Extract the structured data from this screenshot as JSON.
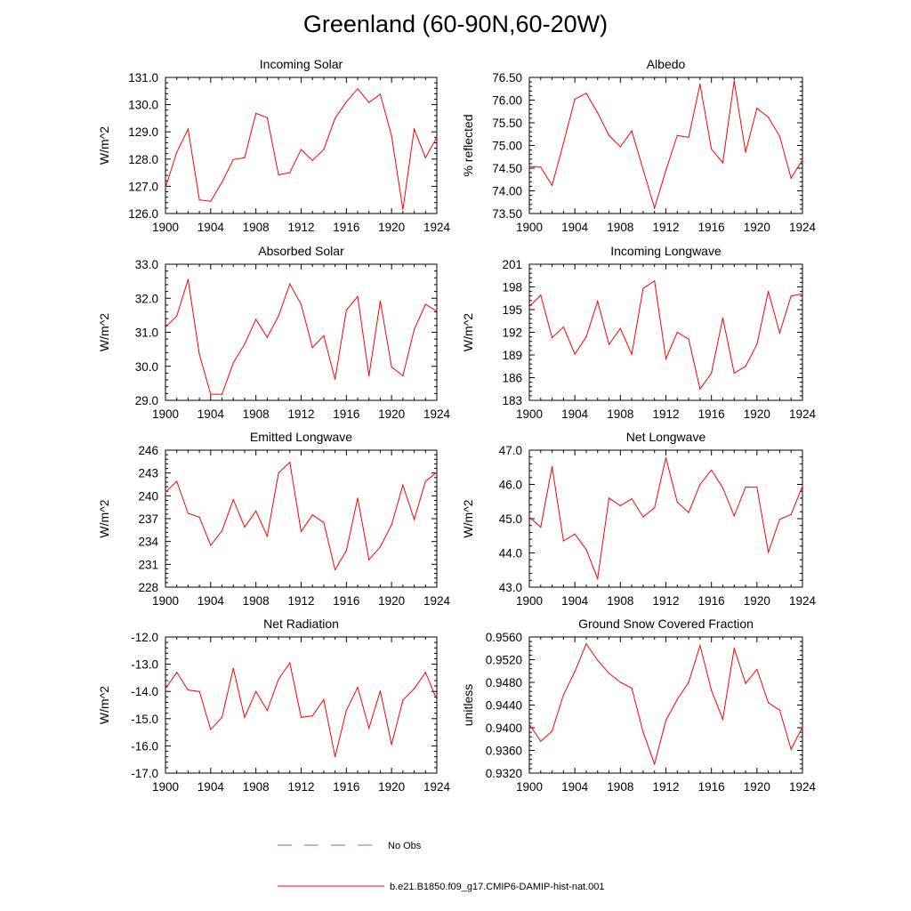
{
  "figure": {
    "title": "Greenland (60-90N,60-20W)"
  },
  "colors": {
    "model": "#ff0000",
    "obs": "#3b3bd6"
  },
  "legend": {
    "obs_label": "No Obs",
    "model_label": "b.e21.B1850.f09_g17.CMIP6-DAMIP-hist-nat.001"
  },
  "chart_data": [
    {
      "type": "line",
      "title": "Incoming Solar",
      "ylabel": "W/m^2",
      "xlim": [
        1900,
        1924
      ],
      "ylim": [
        126.0,
        131.0
      ],
      "xticks": [
        "1900",
        "1904",
        "1908",
        "1912",
        "1916",
        "1920",
        "1924"
      ],
      "yticks": [
        "126.0",
        "127.0",
        "128.0",
        "129.0",
        "130.0",
        "131.0"
      ],
      "series": [
        {
          "name": "b.e21.B1850.f09_g17.CMIP6-DAMIP-hist-nat.001",
          "x": [
            1900,
            1901,
            1902,
            1903,
            1904,
            1905,
            1906,
            1907,
            1908,
            1909,
            1910,
            1911,
            1912,
            1913,
            1914,
            1915,
            1916,
            1917,
            1918,
            1919,
            1920,
            1921,
            1922,
            1923,
            1924
          ],
          "y": [
            126.95,
            128.25,
            129.1,
            126.5,
            126.45,
            127.15,
            127.98,
            128.05,
            129.68,
            129.52,
            127.42,
            127.5,
            128.35,
            127.95,
            128.35,
            129.5,
            130.1,
            130.58,
            130.08,
            130.38,
            128.85,
            126.15,
            129.1,
            128.05,
            128.8
          ]
        }
      ]
    },
    {
      "type": "line",
      "title": "Albedo",
      "ylabel": "% reflected",
      "xlim": [
        1900,
        1924
      ],
      "ylim": [
        73.5,
        76.5
      ],
      "xticks": [
        "1900",
        "1904",
        "1908",
        "1912",
        "1916",
        "1920",
        "1924"
      ],
      "yticks": [
        "73.50",
        "74.00",
        "74.50",
        "75.00",
        "75.50",
        "76.00",
        "76.50"
      ],
      "series": [
        {
          "name": "b.e21.B1850.f09_g17.CMIP6-DAMIP-hist-nat.001",
          "x": [
            1900,
            1901,
            1902,
            1903,
            1904,
            1905,
            1906,
            1907,
            1908,
            1909,
            1910,
            1911,
            1912,
            1913,
            1914,
            1915,
            1916,
            1917,
            1918,
            1919,
            1920,
            1921,
            1922,
            1923,
            1924
          ],
          "y": [
            74.54,
            74.52,
            74.12,
            75.05,
            76.02,
            76.15,
            75.72,
            75.22,
            74.97,
            75.32,
            74.47,
            73.62,
            74.45,
            75.22,
            75.18,
            76.35,
            74.92,
            74.62,
            76.42,
            74.85,
            75.82,
            75.62,
            75.2,
            74.28,
            74.68
          ]
        }
      ]
    },
    {
      "type": "line",
      "title": "Absorbed Solar",
      "ylabel": "W/m^2",
      "xlim": [
        1900,
        1924
      ],
      "ylim": [
        29.0,
        33.0
      ],
      "xticks": [
        "1900",
        "1904",
        "1908",
        "1912",
        "1916",
        "1920",
        "1924"
      ],
      "yticks": [
        "29.0",
        "30.0",
        "31.0",
        "32.0",
        "33.0"
      ],
      "series": [
        {
          "name": "b.e21.B1850.f09_g17.CMIP6-DAMIP-hist-nat.001",
          "x": [
            1900,
            1901,
            1902,
            1903,
            1904,
            1905,
            1906,
            1907,
            1908,
            1909,
            1910,
            1911,
            1912,
            1913,
            1914,
            1915,
            1916,
            1917,
            1918,
            1919,
            1920,
            1921,
            1922,
            1923,
            1924
          ],
          "y": [
            31.15,
            31.48,
            32.55,
            30.35,
            29.18,
            29.18,
            30.1,
            30.65,
            31.38,
            30.85,
            31.48,
            32.42,
            31.82,
            30.55,
            30.9,
            29.62,
            31.65,
            32.05,
            29.72,
            31.92,
            29.98,
            29.72,
            31.08,
            31.82,
            31.62
          ]
        }
      ]
    },
    {
      "type": "line",
      "title": "Incoming Longwave",
      "ylabel": "W/m^2",
      "xlim": [
        1900,
        1924
      ],
      "ylim": [
        183,
        201
      ],
      "xticks": [
        "1900",
        "1904",
        "1908",
        "1912",
        "1916",
        "1920",
        "1924"
      ],
      "yticks": [
        "183",
        "186",
        "189",
        "192",
        "195",
        "198",
        "201"
      ],
      "series": [
        {
          "name": "b.e21.B1850.f09_g17.CMIP6-DAMIP-hist-nat.001",
          "x": [
            1900,
            1901,
            1902,
            1903,
            1904,
            1905,
            1906,
            1907,
            1908,
            1909,
            1910,
            1911,
            1912,
            1913,
            1914,
            1915,
            1916,
            1917,
            1918,
            1919,
            1920,
            1921,
            1922,
            1923,
            1924
          ],
          "y": [
            195.4,
            196.9,
            191.3,
            192.7,
            189.1,
            191.4,
            196.1,
            190.4,
            192.5,
            189.1,
            197.8,
            198.8,
            188.5,
            192.0,
            191.1,
            184.5,
            186.6,
            193.9,
            186.6,
            187.5,
            190.4,
            197.4,
            191.9,
            196.8,
            197.1
          ]
        }
      ]
    },
    {
      "type": "line",
      "title": "Emitted Longwave",
      "ylabel": "W/m^2",
      "xlim": [
        1900,
        1924
      ],
      "ylim": [
        228,
        246
      ],
      "xticks": [
        "1900",
        "1904",
        "1908",
        "1912",
        "1916",
        "1920",
        "1924"
      ],
      "yticks": [
        "228",
        "231",
        "234",
        "237",
        "240",
        "243",
        "246"
      ],
      "series": [
        {
          "name": "b.e21.B1850.f09_g17.CMIP6-DAMIP-hist-nat.001",
          "x": [
            1900,
            1901,
            1902,
            1903,
            1904,
            1905,
            1906,
            1907,
            1908,
            1909,
            1910,
            1911,
            1912,
            1913,
            1914,
            1915,
            1916,
            1917,
            1918,
            1919,
            1920,
            1921,
            1922,
            1923,
            1924
          ],
          "y": [
            240.5,
            241.9,
            237.7,
            237.2,
            233.5,
            235.4,
            239.5,
            235.9,
            238.0,
            234.7,
            243.0,
            244.4,
            235.3,
            237.5,
            236.5,
            230.3,
            232.8,
            239.7,
            231.6,
            233.3,
            236.2,
            241.4,
            236.9,
            241.9,
            243.1
          ]
        }
      ]
    },
    {
      "type": "line",
      "title": "Net Longwave",
      "ylabel": "W/m^2",
      "xlim": [
        1900,
        1924
      ],
      "ylim": [
        43.0,
        47.0
      ],
      "xticks": [
        "1900",
        "1904",
        "1908",
        "1912",
        "1916",
        "1920",
        "1924"
      ],
      "yticks": [
        "43.0",
        "44.0",
        "45.0",
        "46.0",
        "47.0"
      ],
      "series": [
        {
          "name": "b.e21.B1850.f09_g17.CMIP6-DAMIP-hist-nat.001",
          "x": [
            1900,
            1901,
            1902,
            1903,
            1904,
            1905,
            1906,
            1907,
            1908,
            1909,
            1910,
            1911,
            1912,
            1913,
            1914,
            1915,
            1916,
            1917,
            1918,
            1919,
            1920,
            1921,
            1922,
            1923,
            1924
          ],
          "y": [
            45.05,
            44.75,
            46.52,
            44.35,
            44.55,
            44.1,
            43.25,
            45.6,
            45.38,
            45.58,
            45.05,
            45.32,
            46.78,
            45.48,
            45.18,
            46.0,
            46.42,
            45.9,
            45.08,
            45.92,
            45.92,
            44.02,
            44.98,
            45.12,
            45.95
          ]
        }
      ]
    },
    {
      "type": "line",
      "title": "Net Radiation",
      "ylabel": "W/m^2",
      "xlim": [
        1900,
        1924
      ],
      "ylim": [
        -17.0,
        -12.0
      ],
      "xticks": [
        "1900",
        "1904",
        "1908",
        "1912",
        "1916",
        "1920",
        "1924"
      ],
      "yticks": [
        "-17.0",
        "-16.0",
        "-15.0",
        "-14.0",
        "-13.0",
        "-12.0"
      ],
      "series": [
        {
          "name": "b.e21.B1850.f09_g17.CMIP6-DAMIP-hist-nat.001",
          "x": [
            1900,
            1901,
            1902,
            1903,
            1904,
            1905,
            1906,
            1907,
            1908,
            1909,
            1910,
            1911,
            1912,
            1913,
            1914,
            1915,
            1916,
            1917,
            1918,
            1919,
            1920,
            1921,
            1922,
            1923,
            1924
          ],
          "y": [
            -13.9,
            -13.3,
            -13.95,
            -14.0,
            -15.4,
            -14.95,
            -13.15,
            -14.95,
            -14.0,
            -14.7,
            -13.55,
            -12.95,
            -14.95,
            -14.9,
            -14.3,
            -16.4,
            -14.7,
            -13.85,
            -15.35,
            -13.98,
            -15.95,
            -14.32,
            -13.9,
            -13.3,
            -14.3
          ]
        }
      ]
    },
    {
      "type": "line",
      "title": "Ground Snow Covered Fraction",
      "ylabel": "unitless",
      "xlim": [
        1900,
        1924
      ],
      "ylim": [
        0.932,
        0.956
      ],
      "xticks": [
        "1900",
        "1904",
        "1908",
        "1912",
        "1916",
        "1920",
        "1924"
      ],
      "yticks": [
        "0.9320",
        "0.9360",
        "0.9400",
        "0.9440",
        "0.9480",
        "0.9520",
        "0.9560"
      ],
      "series": [
        {
          "name": "b.e21.B1850.f09_g17.CMIP6-DAMIP-hist-nat.001",
          "x": [
            1900,
            1901,
            1902,
            1903,
            1904,
            1905,
            1906,
            1907,
            1908,
            1909,
            1910,
            1911,
            1912,
            1913,
            1914,
            1915,
            1916,
            1917,
            1918,
            1919,
            1920,
            1921,
            1922,
            1923,
            1924
          ],
          "y": [
            0.9406,
            0.9376,
            0.9394,
            0.9458,
            0.9499,
            0.9548,
            0.9519,
            0.9496,
            0.948,
            0.947,
            0.9392,
            0.9336,
            0.9413,
            0.945,
            0.948,
            0.9545,
            0.9466,
            0.9415,
            0.954,
            0.9478,
            0.9503,
            0.9444,
            0.9431,
            0.9362,
            0.9401
          ]
        }
      ]
    }
  ]
}
